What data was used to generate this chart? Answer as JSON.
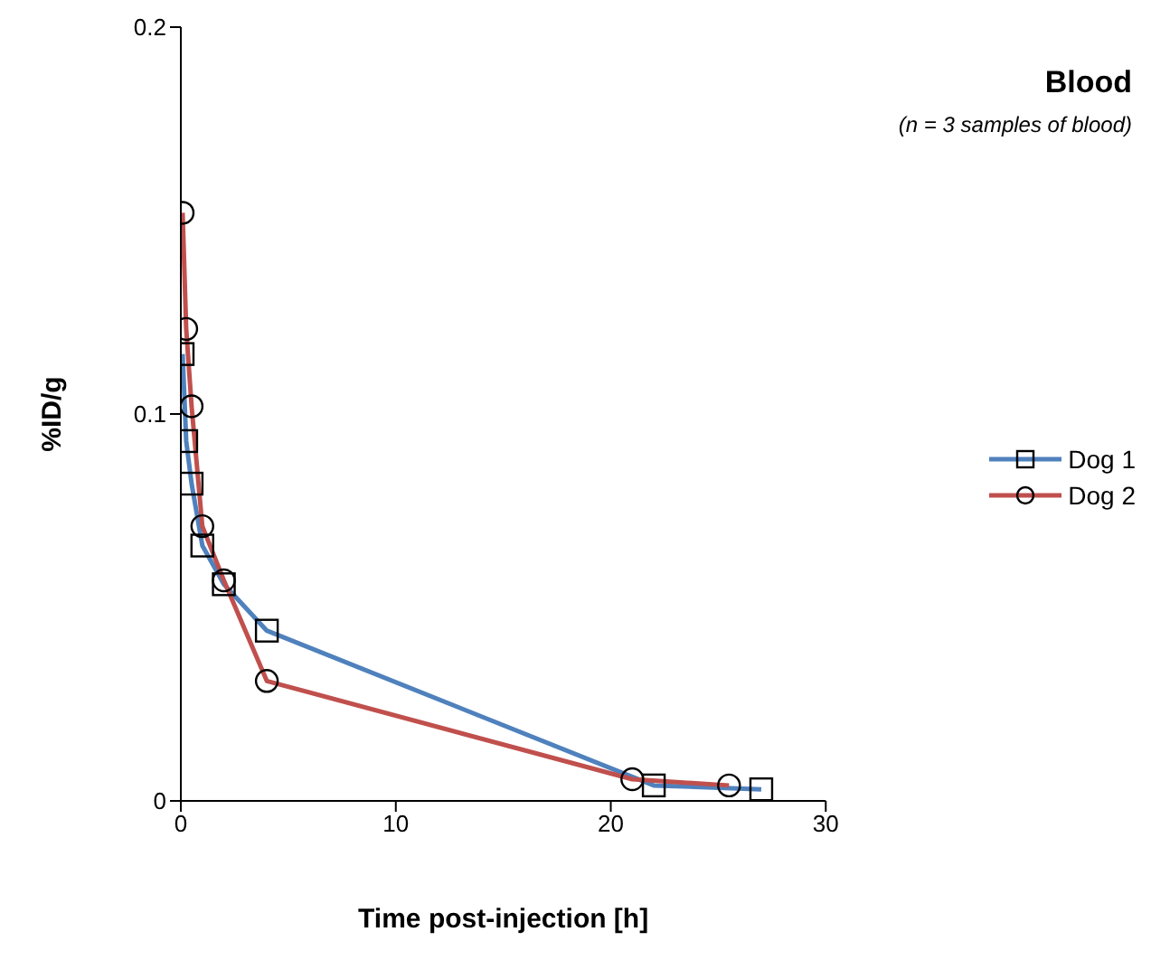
{
  "chart_data": {
    "type": "line",
    "xlabel": "Time post-injection [h]",
    "ylabel": "%ID/g",
    "annotations": [
      "Blood",
      "(n = 3 samples of blood)"
    ],
    "xlim": [
      0,
      30
    ],
    "xticks": [
      0,
      10,
      20,
      30
    ],
    "ylim": [
      0,
      0.2
    ],
    "yticks": [
      0,
      0.1,
      0.2
    ],
    "grid": false,
    "legend": "right",
    "series": [
      {
        "name": "Dog 1",
        "color": "#4f81bd",
        "marker": "square",
        "x": [
          0.083,
          0.25,
          0.5,
          1,
          2,
          4,
          22,
          27
        ],
        "values": [
          0.1155,
          0.093,
          0.082,
          0.066,
          0.056,
          0.044,
          0.004,
          0.003
        ]
      },
      {
        "name": "Dog 2",
        "color": "#c0504d",
        "marker": "circle",
        "x": [
          0.083,
          0.25,
          0.5,
          1,
          2,
          4,
          21,
          25.5
        ],
        "values": [
          0.152,
          0.122,
          0.102,
          0.071,
          0.057,
          0.031,
          0.0056,
          0.004
        ]
      }
    ]
  }
}
